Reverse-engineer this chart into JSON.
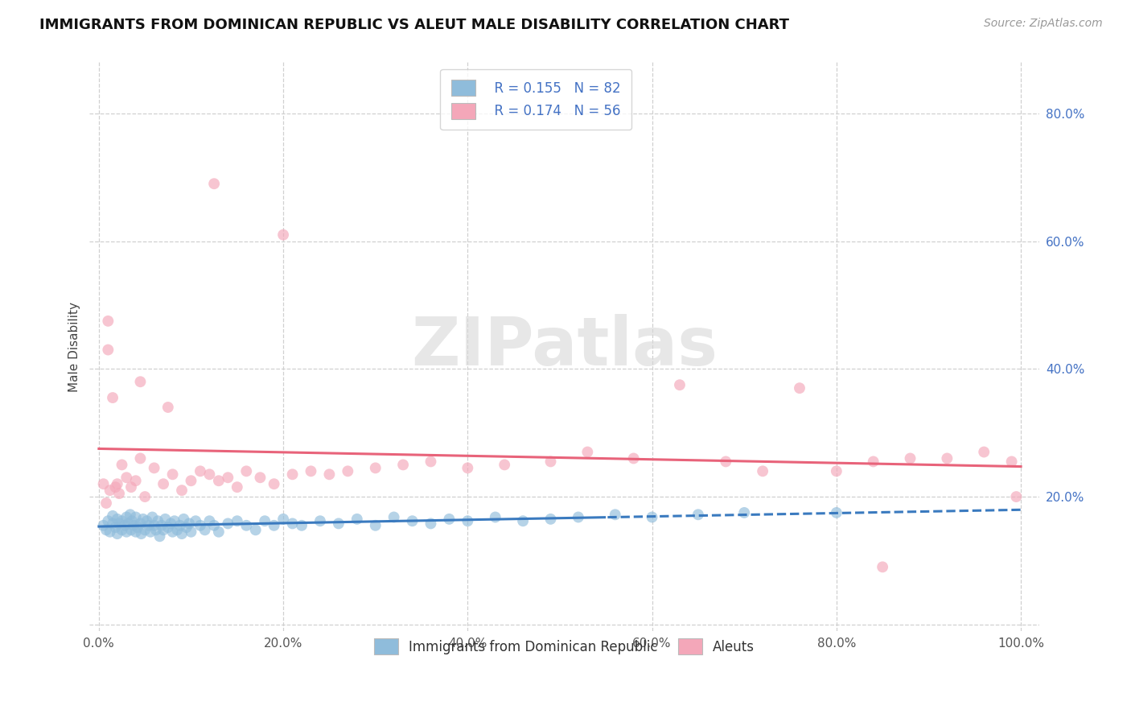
{
  "title": "IMMIGRANTS FROM DOMINICAN REPUBLIC VS ALEUT MALE DISABILITY CORRELATION CHART",
  "source": "Source: ZipAtlas.com",
  "ylabel": "Male Disability",
  "legend_r1": "R = 0.155",
  "legend_n1": "N = 82",
  "legend_r2": "R = 0.174",
  "legend_n2": "N = 56",
  "xlim": [
    -0.01,
    1.02
  ],
  "ylim": [
    -0.01,
    0.88
  ],
  "xticks": [
    0.0,
    0.2,
    0.4,
    0.6,
    0.8,
    1.0
  ],
  "yticks": [
    0.0,
    0.2,
    0.4,
    0.6,
    0.8
  ],
  "xtick_labels": [
    "0.0%",
    "20.0%",
    "40.0%",
    "60.0%",
    "80.0%",
    "100.0%"
  ],
  "ytick_labels": [
    "",
    "20.0%",
    "40.0%",
    "60.0%",
    "80.0%"
  ],
  "color_blue": "#8fbcdb",
  "color_pink": "#f4a7b9",
  "trend_blue_solid": "#3a7abf",
  "trend_blue_dash": "#3a7abf",
  "trend_pink": "#e8637a",
  "background": "#ffffff",
  "grid_color": "#d0d0d0",
  "blue_x": [
    0.005,
    0.008,
    0.01,
    0.012,
    0.015,
    0.015,
    0.018,
    0.02,
    0.02,
    0.022,
    0.025,
    0.025,
    0.028,
    0.03,
    0.03,
    0.032,
    0.034,
    0.035,
    0.036,
    0.038,
    0.04,
    0.04,
    0.042,
    0.045,
    0.046,
    0.048,
    0.05,
    0.052,
    0.054,
    0.056,
    0.058,
    0.06,
    0.062,
    0.064,
    0.066,
    0.068,
    0.07,
    0.072,
    0.075,
    0.078,
    0.08,
    0.082,
    0.085,
    0.088,
    0.09,
    0.092,
    0.095,
    0.098,
    0.1,
    0.105,
    0.11,
    0.115,
    0.12,
    0.125,
    0.13,
    0.14,
    0.15,
    0.16,
    0.17,
    0.18,
    0.19,
    0.2,
    0.21,
    0.22,
    0.24,
    0.26,
    0.28,
    0.3,
    0.32,
    0.34,
    0.36,
    0.38,
    0.4,
    0.43,
    0.46,
    0.49,
    0.52,
    0.56,
    0.6,
    0.65,
    0.7,
    0.8
  ],
  "blue_y": [
    0.155,
    0.148,
    0.162,
    0.145,
    0.158,
    0.17,
    0.152,
    0.165,
    0.142,
    0.158,
    0.148,
    0.162,
    0.155,
    0.168,
    0.145,
    0.158,
    0.172,
    0.148,
    0.162,
    0.155,
    0.145,
    0.168,
    0.152,
    0.158,
    0.142,
    0.165,
    0.148,
    0.162,
    0.155,
    0.145,
    0.168,
    0.155,
    0.148,
    0.162,
    0.138,
    0.155,
    0.148,
    0.165,
    0.152,
    0.158,
    0.145,
    0.162,
    0.148,
    0.155,
    0.142,
    0.165,
    0.152,
    0.158,
    0.145,
    0.162,
    0.155,
    0.148,
    0.162,
    0.155,
    0.145,
    0.158,
    0.162,
    0.155,
    0.148,
    0.162,
    0.155,
    0.165,
    0.158,
    0.155,
    0.162,
    0.158,
    0.165,
    0.155,
    0.168,
    0.162,
    0.158,
    0.165,
    0.162,
    0.168,
    0.162,
    0.165,
    0.168,
    0.172,
    0.168,
    0.172,
    0.175,
    0.175
  ],
  "pink_x": [
    0.005,
    0.008,
    0.01,
    0.012,
    0.015,
    0.018,
    0.02,
    0.022,
    0.025,
    0.03,
    0.035,
    0.04,
    0.045,
    0.05,
    0.06,
    0.07,
    0.08,
    0.09,
    0.1,
    0.11,
    0.12,
    0.13,
    0.14,
    0.15,
    0.16,
    0.175,
    0.19,
    0.21,
    0.23,
    0.25,
    0.27,
    0.3,
    0.33,
    0.36,
    0.4,
    0.44,
    0.49,
    0.53,
    0.58,
    0.63,
    0.68,
    0.72,
    0.76,
    0.8,
    0.84,
    0.88,
    0.92,
    0.96,
    0.99,
    0.995,
    0.125,
    0.2,
    0.045,
    0.075,
    0.01,
    0.85
  ],
  "pink_y": [
    0.22,
    0.19,
    0.43,
    0.21,
    0.355,
    0.215,
    0.22,
    0.205,
    0.25,
    0.23,
    0.215,
    0.225,
    0.26,
    0.2,
    0.245,
    0.22,
    0.235,
    0.21,
    0.225,
    0.24,
    0.235,
    0.225,
    0.23,
    0.215,
    0.24,
    0.23,
    0.22,
    0.235,
    0.24,
    0.235,
    0.24,
    0.245,
    0.25,
    0.255,
    0.245,
    0.25,
    0.255,
    0.27,
    0.26,
    0.375,
    0.255,
    0.24,
    0.37,
    0.24,
    0.255,
    0.26,
    0.26,
    0.27,
    0.255,
    0.2,
    0.69,
    0.61,
    0.38,
    0.34,
    0.475,
    0.09
  ]
}
